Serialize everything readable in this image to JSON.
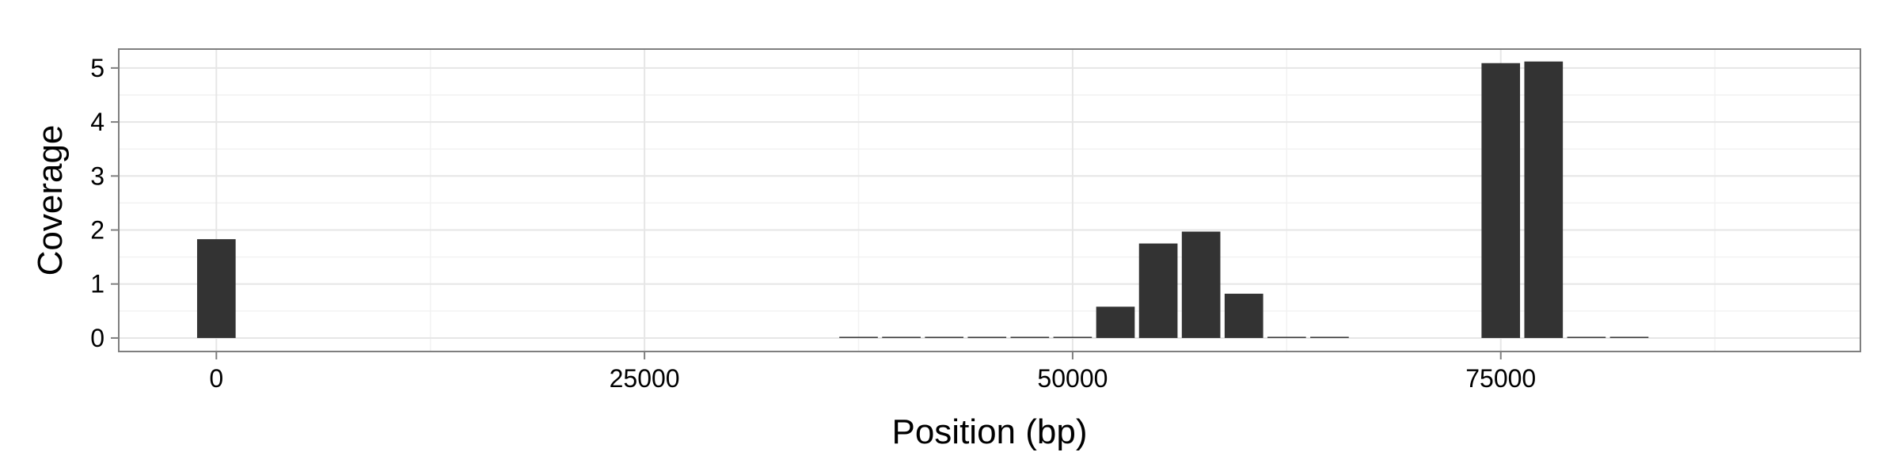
{
  "chart_data": {
    "type": "bar",
    "title": "",
    "xlabel": "Position (bp)",
    "ylabel": "Coverage",
    "xlim": [
      -5700,
      96000
    ],
    "ylim": [
      -0.25,
      5.35
    ],
    "x_ticks": [
      0,
      25000,
      50000,
      75000
    ],
    "x_tick_labels": [
      "0",
      "25000",
      "50000",
      "75000"
    ],
    "y_ticks": [
      0,
      1,
      2,
      3,
      4,
      5
    ],
    "y_tick_labels": [
      "0",
      "1",
      "2",
      "3",
      "4",
      "5"
    ],
    "bin_width": 2500,
    "grid": true,
    "legend": "none",
    "colors": {
      "bar": "#333333",
      "grid_major": "#e6e6e6",
      "grid_minor": "#f2f2f2",
      "panel_border": "#7f7f7f",
      "tick": "#7f7f7f"
    },
    "x": [
      0,
      37500,
      40000,
      42500,
      45000,
      47500,
      50000,
      52500,
      55000,
      57500,
      60000,
      62500,
      65000,
      75000,
      77500,
      80000,
      82500
    ],
    "values": [
      1.83,
      0.01,
      0.02,
      0.02,
      0.015,
      0.01,
      0.01,
      0.58,
      1.75,
      1.97,
      0.82,
      0.02,
      0.01,
      5.09,
      5.12,
      0.02,
      0.01
    ]
  }
}
